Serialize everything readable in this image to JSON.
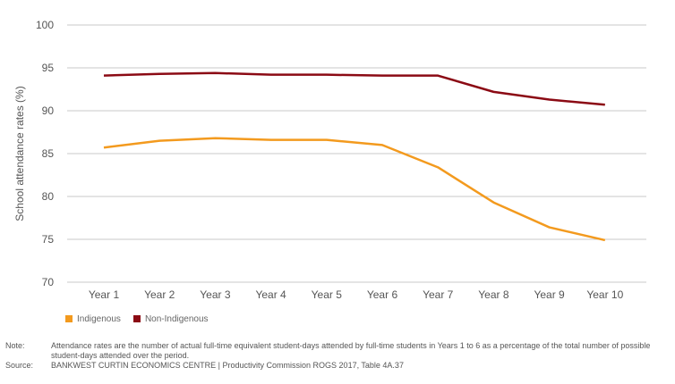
{
  "chart_data": {
    "type": "line",
    "title": "",
    "xlabel": "",
    "ylabel": "School attendance rates (%)",
    "ylim": [
      70,
      100
    ],
    "yticks": [
      70,
      75,
      80,
      85,
      90,
      95,
      100
    ],
    "grid": true,
    "legend_placement": "bottom-left",
    "categories": [
      "Year 1",
      "Year 2",
      "Year 3",
      "Year 4",
      "Year 5",
      "Year 6",
      "Year 7",
      "Year 8",
      "Year 9",
      "Year 10"
    ],
    "series": [
      {
        "name": "Indigenous",
        "color": "#f39a1e",
        "values": [
          85.7,
          86.5,
          86.8,
          86.6,
          86.6,
          86.0,
          83.4,
          79.3,
          76.4,
          74.9
        ]
      },
      {
        "name": "Non-Indigenous",
        "color": "#8b0a14",
        "values": [
          94.1,
          94.3,
          94.4,
          94.2,
          94.2,
          94.1,
          94.1,
          92.2,
          91.3,
          90.7
        ]
      }
    ]
  },
  "notes": {
    "note_label": "Note:",
    "note_text": "Attendance rates are the number of actual full-time equivalent student-days attended by full-time students in Years 1 to 6 as a percentage of the total number of possible student-days attended over the period.",
    "source_label": "Source:",
    "source_text": "BANKWEST CURTIN ECONOMICS CENTRE | Productivity Commission ROGS 2017, Table 4A.37"
  }
}
